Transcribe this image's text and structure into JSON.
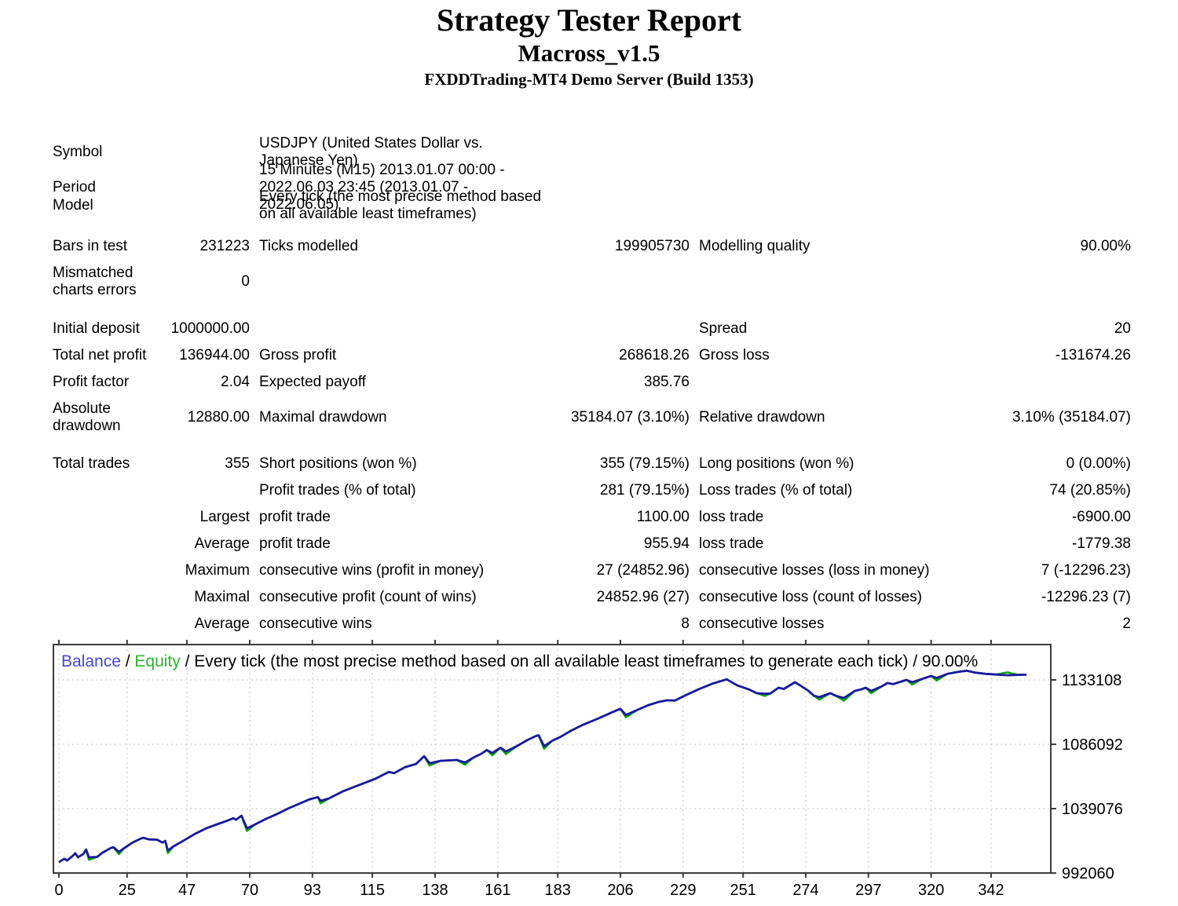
{
  "header": {
    "title": "Strategy Tester Report",
    "ea_name": "Macross_v1.5",
    "server": "FXDDTrading-MT4 Demo Server (Build 1353)"
  },
  "report": {
    "rows": [
      {
        "a": "Symbol",
        "c": "USDJPY (United States Dollar vs. Japanese Yen)"
      },
      {
        "a": "Period",
        "c": "15 Minutes (M15) 2013.01.07 00:00 - 2022.06.03 23:45 (2013.01.07 - 2022.06.05)"
      },
      {
        "a": "Model",
        "c": "Every tick (the most precise method based on all available least timeframes)"
      },
      {
        "a": "Bars in test",
        "b": "231223",
        "c": "Ticks modelled",
        "d": "199905730",
        "e": "Modelling quality",
        "f": "90.00%"
      },
      {
        "a": "Mismatched charts errors",
        "b": "0"
      },
      {
        "a": "Initial deposit",
        "b": "1000000.00",
        "e": "Spread",
        "f": "20"
      },
      {
        "a": "Total net profit",
        "b": "136944.00",
        "c": "Gross profit",
        "d": "268618.26",
        "e": "Gross loss",
        "f": "-131674.26"
      },
      {
        "a": "Profit factor",
        "b": "2.04",
        "c": "Expected payoff",
        "d": "385.76"
      },
      {
        "a": "Absolute drawdown",
        "b": "12880.00",
        "c": "Maximal drawdown",
        "d": "35184.07 (3.10%)",
        "e": "Relative drawdown",
        "f": "3.10% (35184.07)"
      },
      {
        "a": "Total trades",
        "b": "355",
        "c": "Short positions (won %)",
        "d": "355 (79.15%)",
        "e": "Long positions (won %)",
        "f": "0 (0.00%)"
      },
      {
        "c": "Profit trades (% of total)",
        "d": "281 (79.15%)",
        "e": "Loss trades (% of total)",
        "f": "74 (20.85%)"
      },
      {
        "b": "Largest",
        "c": "profit trade",
        "d": "1100.00",
        "e": "loss trade",
        "f": "-6900.00"
      },
      {
        "b": "Average",
        "c": "profit trade",
        "d": "955.94",
        "e": "loss trade",
        "f": "-1779.38"
      },
      {
        "b": "Maximum",
        "c": "consecutive wins (profit in money)",
        "d": "27 (24852.96)",
        "e": "consecutive losses (loss in money)",
        "f": "7 (-12296.23)"
      },
      {
        "b": "Maximal",
        "c": "consecutive profit (count of wins)",
        "d": "24852.96 (27)",
        "e": "consecutive loss (count of losses)",
        "f": "-12296.23 (7)"
      },
      {
        "b": "Average",
        "c": "consecutive wins",
        "d": "8",
        "e": "consecutive losses",
        "f": "2"
      }
    ]
  },
  "chart_data": {
    "type": "line",
    "legend": {
      "balance_label": "Balance",
      "separator": " / ",
      "equity_label": "Equity",
      "suffix": " / Every tick (the most precise method based on all available least timeframes to generate each tick) / 90.00%"
    },
    "x_ticks": [
      0,
      25,
      47,
      70,
      93,
      115,
      138,
      161,
      183,
      206,
      229,
      251,
      274,
      297,
      320,
      342
    ],
    "y_ticks": [
      1133108,
      1086092,
      1039076,
      992060
    ],
    "x_range": [
      0,
      364
    ],
    "y_range": [
      992060,
      1133108
    ],
    "grid": true,
    "legend_position": "top-left",
    "series_names": [
      "Balance",
      "Equity"
    ],
    "balance": [
      [
        0,
        1000000
      ],
      [
        2,
        1002500
      ],
      [
        3,
        1001200
      ],
      [
        5,
        1004500
      ],
      [
        6,
        1006500
      ],
      [
        7,
        1003600
      ],
      [
        9,
        1006000
      ],
      [
        10,
        1009200
      ],
      [
        11,
        1003500
      ],
      [
        14,
        1003800
      ],
      [
        16,
        1006900
      ],
      [
        19,
        1010300
      ],
      [
        20,
        1010900
      ],
      [
        22,
        1007500
      ],
      [
        24,
        1010300
      ],
      [
        27,
        1014300
      ],
      [
        30,
        1017200
      ],
      [
        31,
        1017800
      ],
      [
        33,
        1016600
      ],
      [
        36,
        1016400
      ],
      [
        38,
        1014300
      ],
      [
        39,
        1015500
      ],
      [
        40,
        1008600
      ],
      [
        42,
        1011500
      ],
      [
        45,
        1014900
      ],
      [
        50,
        1020700
      ],
      [
        54,
        1024700
      ],
      [
        58,
        1027600
      ],
      [
        62,
        1030400
      ],
      [
        64,
        1032100
      ],
      [
        65,
        1031000
      ],
      [
        67,
        1033900
      ],
      [
        69,
        1024700
      ],
      [
        72,
        1027600
      ],
      [
        76,
        1031600
      ],
      [
        80,
        1035100
      ],
      [
        84,
        1039100
      ],
      [
        88,
        1042500
      ],
      [
        92,
        1045900
      ],
      [
        95,
        1047500
      ],
      [
        96,
        1044800
      ],
      [
        99,
        1046500
      ],
      [
        104,
        1051600
      ],
      [
        110,
        1056200
      ],
      [
        116,
        1060800
      ],
      [
        121,
        1065900
      ],
      [
        123,
        1065000
      ],
      [
        127,
        1069400
      ],
      [
        131,
        1071700
      ],
      [
        134,
        1077400
      ],
      [
        136,
        1072300
      ],
      [
        140,
        1074000
      ],
      [
        146,
        1074600
      ],
      [
        149,
        1072800
      ],
      [
        152,
        1076300
      ],
      [
        155,
        1079200
      ],
      [
        157,
        1081900
      ],
      [
        159,
        1079700
      ],
      [
        162,
        1083600
      ],
      [
        164,
        1080800
      ],
      [
        168,
        1084700
      ],
      [
        172,
        1089300
      ],
      [
        175,
        1092100
      ],
      [
        176,
        1092700
      ],
      [
        178,
        1084700
      ],
      [
        181,
        1088700
      ],
      [
        184,
        1091500
      ],
      [
        188,
        1096100
      ],
      [
        192,
        1100100
      ],
      [
        198,
        1105000
      ],
      [
        203,
        1109500
      ],
      [
        206,
        1112000
      ],
      [
        208,
        1107500
      ],
      [
        212,
        1111000
      ],
      [
        216,
        1114500
      ],
      [
        220,
        1117000
      ],
      [
        223,
        1118200
      ],
      [
        226,
        1118000
      ],
      [
        230,
        1122000
      ],
      [
        235,
        1126500
      ],
      [
        240,
        1130500
      ],
      [
        245,
        1133500
      ],
      [
        249,
        1129000
      ],
      [
        253,
        1126300
      ],
      [
        256,
        1123400
      ],
      [
        259,
        1123000
      ],
      [
        261,
        1123200
      ],
      [
        264,
        1127400
      ],
      [
        266,
        1126500
      ],
      [
        270,
        1131400
      ],
      [
        272,
        1129000
      ],
      [
        275,
        1125100
      ],
      [
        277,
        1121500
      ],
      [
        279,
        1120500
      ],
      [
        283,
        1123400
      ],
      [
        285,
        1121500
      ],
      [
        288,
        1119900
      ],
      [
        292,
        1125100
      ],
      [
        294,
        1126000
      ],
      [
        296,
        1127400
      ],
      [
        298,
        1125100
      ],
      [
        302,
        1128500
      ],
      [
        304,
        1130800
      ],
      [
        306,
        1130000
      ],
      [
        311,
        1133100
      ],
      [
        313,
        1131400
      ],
      [
        317,
        1134000
      ],
      [
        320,
        1136000
      ],
      [
        322,
        1134500
      ],
      [
        326,
        1137500
      ],
      [
        330,
        1139000
      ],
      [
        333,
        1139800
      ],
      [
        336,
        1138500
      ],
      [
        340,
        1137500
      ],
      [
        344,
        1137000
      ],
      [
        348,
        1136500
      ],
      [
        352,
        1136800
      ],
      [
        355,
        1136944
      ]
    ],
    "equity_dips": [
      [
        11,
        1001800
      ],
      [
        22,
        1005900
      ],
      [
        40,
        1006600
      ],
      [
        69,
        1022800
      ],
      [
        96,
        1043000
      ],
      [
        136,
        1070600
      ],
      [
        149,
        1071200
      ],
      [
        159,
        1078000
      ],
      [
        164,
        1079000
      ],
      [
        178,
        1082800
      ],
      [
        208,
        1105800
      ],
      [
        259,
        1121400
      ],
      [
        279,
        1118800
      ],
      [
        288,
        1117900
      ],
      [
        298,
        1123400
      ],
      [
        313,
        1129800
      ],
      [
        322,
        1132700
      ],
      [
        348,
        1138600
      ]
    ],
    "colors": {
      "balance": "#1a1aa0",
      "equity": "#0da60d",
      "legend_balance": "#4646dc",
      "legend_equity": "#2cb52c",
      "grid": "#c4c4c4",
      "axis": "#3c3c3c"
    }
  }
}
